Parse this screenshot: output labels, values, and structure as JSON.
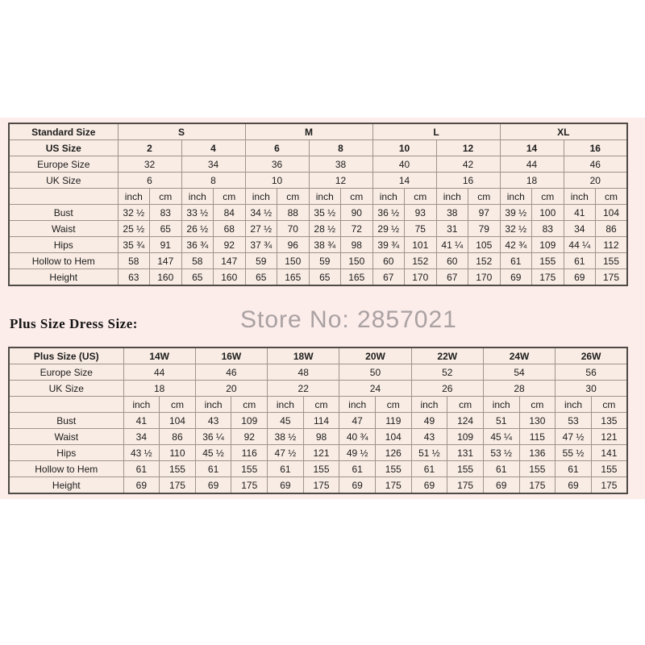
{
  "page": {
    "background": "#ffffff",
    "band_background": "#fceceа_placeholder_not_used",
    "band_color": "#fcecea"
  },
  "colors": {
    "cell_background": "#f9ece4",
    "border_outer": "#4f4a46",
    "border_inner": "#9d948c",
    "text": "#1c1c1c",
    "watermark": "#a9a1a2"
  },
  "watermark": {
    "text": "Store No: 2857021"
  },
  "plus_section": {
    "title": "Plus Size Dress Size:"
  },
  "standard_table": {
    "corner_label": "Standard Size",
    "label_col_width": 135,
    "groups": [
      {
        "label": "S",
        "span": 4
      },
      {
        "label": "M",
        "span": 4
      },
      {
        "label": "L",
        "span": 4
      },
      {
        "label": "XL",
        "span": 4
      }
    ],
    "size_rows": [
      {
        "label": "US Size",
        "bold": true,
        "span": 2,
        "values": [
          "2",
          "4",
          "6",
          "8",
          "10",
          "12",
          "14",
          "16"
        ]
      },
      {
        "label": "Europe Size",
        "bold": false,
        "span": 2,
        "values": [
          "32",
          "34",
          "36",
          "38",
          "40",
          "42",
          "44",
          "46"
        ]
      },
      {
        "label": "UK Size",
        "bold": false,
        "span": 2,
        "values": [
          "6",
          "8",
          "10",
          "12",
          "14",
          "16",
          "18",
          "20"
        ]
      }
    ],
    "units": [
      "inch",
      "cm"
    ],
    "unit_pairs": 8,
    "measure_rows": [
      {
        "label": "Bust",
        "values": [
          "32 ½",
          "83",
          "33 ½",
          "84",
          "34 ½",
          "88",
          "35 ½",
          "90",
          "36 ½",
          "93",
          "38",
          "97",
          "39 ½",
          "100",
          "41",
          "104"
        ]
      },
      {
        "label": "Waist",
        "values": [
          "25 ½",
          "65",
          "26 ½",
          "68",
          "27 ½",
          "70",
          "28 ½",
          "72",
          "29 ½",
          "75",
          "31",
          "79",
          "32 ½",
          "83",
          "34",
          "86"
        ]
      },
      {
        "label": "Hips",
        "values": [
          "35 ¾",
          "91",
          "36 ¾",
          "92",
          "37 ¾",
          "96",
          "38 ¾",
          "98",
          "39 ¾",
          "101",
          "41 ¼",
          "105",
          "42 ¾",
          "109",
          "44 ¼",
          "112"
        ]
      },
      {
        "label": "Hollow to Hem",
        "values": [
          "58",
          "147",
          "58",
          "147",
          "59",
          "150",
          "59",
          "150",
          "60",
          "152",
          "60",
          "152",
          "61",
          "155",
          "61",
          "155"
        ]
      },
      {
        "label": "Height",
        "values": [
          "63",
          "160",
          "65",
          "160",
          "65",
          "165",
          "65",
          "165",
          "67",
          "170",
          "67",
          "170",
          "69",
          "175",
          "69",
          "175"
        ]
      }
    ]
  },
  "plus_table": {
    "corner_label": "Plus Size (US)",
    "label_col_width": 142,
    "groups": [
      {
        "label": "14W",
        "span": 2
      },
      {
        "label": "16W",
        "span": 2
      },
      {
        "label": "18W",
        "span": 2
      },
      {
        "label": "20W",
        "span": 2
      },
      {
        "label": "22W",
        "span": 2
      },
      {
        "label": "24W",
        "span": 2
      },
      {
        "label": "26W",
        "span": 2
      }
    ],
    "size_rows": [
      {
        "label": "Europe Size",
        "bold": false,
        "span": 2,
        "values": [
          "44",
          "46",
          "48",
          "50",
          "52",
          "54",
          "56"
        ]
      },
      {
        "label": "UK Size",
        "bold": false,
        "span": 2,
        "values": [
          "18",
          "20",
          "22",
          "24",
          "26",
          "28",
          "30"
        ]
      }
    ],
    "units": [
      "inch",
      "cm"
    ],
    "unit_pairs": 7,
    "measure_rows": [
      {
        "label": "Bust",
        "values": [
          "41",
          "104",
          "43",
          "109",
          "45",
          "114",
          "47",
          "119",
          "49",
          "124",
          "51",
          "130",
          "53",
          "135"
        ]
      },
      {
        "label": "Waist",
        "values": [
          "34",
          "86",
          "36 ¼",
          "92",
          "38 ½",
          "98",
          "40 ¾",
          "104",
          "43",
          "109",
          "45 ¼",
          "115",
          "47 ½",
          "121"
        ]
      },
      {
        "label": "Hips",
        "values": [
          "43 ½",
          "110",
          "45 ½",
          "116",
          "47 ½",
          "121",
          "49 ½",
          "126",
          "51 ½",
          "131",
          "53 ½",
          "136",
          "55 ½",
          "141"
        ]
      },
      {
        "label": "Hollow to Hem",
        "values": [
          "61",
          "155",
          "61",
          "155",
          "61",
          "155",
          "61",
          "155",
          "61",
          "155",
          "61",
          "155",
          "61",
          "155"
        ]
      },
      {
        "label": "Height",
        "values": [
          "69",
          "175",
          "69",
          "175",
          "69",
          "175",
          "69",
          "175",
          "69",
          "175",
          "69",
          "175",
          "69",
          "175"
        ]
      }
    ]
  }
}
